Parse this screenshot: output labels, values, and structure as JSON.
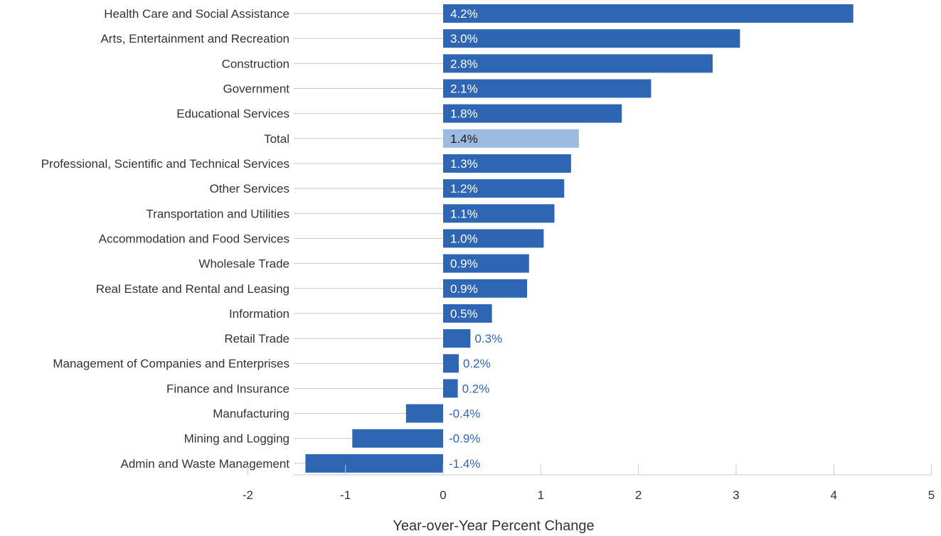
{
  "chart_data": {
    "type": "bar",
    "orientation": "horizontal",
    "xlabel": "Year-over-Year Percent Change",
    "xlim": [
      -2,
      5
    ],
    "xticks": [
      -2,
      -1,
      0,
      1,
      2,
      3,
      4,
      5
    ],
    "xtick_labels": [
      "-2",
      "-1",
      "0",
      "1",
      "2",
      "3",
      "4",
      "5"
    ],
    "colors": {
      "bar": "#2f66b3",
      "highlight": "#9dbbe0",
      "label_outside": "#2f66b3"
    },
    "categories": [
      "Health Care and Social Assistance",
      "Arts, Entertainment and Recreation",
      "Construction",
      "Government",
      "Educational Services",
      "Total",
      "Professional, Scientific and Technical Services",
      "Other Services",
      "Transportation and Utilities",
      "Accommodation and Food Services",
      "Wholesale Trade",
      "Real Estate and Rental and Leasing",
      "Information",
      "Retail Trade",
      "Management of Companies and Enterprises",
      "Finance and Insurance",
      "Manufacturing",
      "Mining and Logging",
      "Admin and Waste Management"
    ],
    "values": [
      4.2,
      3.04,
      2.76,
      2.13,
      1.83,
      1.39,
      1.31,
      1.24,
      1.14,
      1.03,
      0.88,
      0.86,
      0.5,
      0.28,
      0.16,
      0.15,
      -0.38,
      -0.93,
      -1.41
    ],
    "value_labels": [
      "4.2%",
      "3.0%",
      "2.8%",
      "2.1%",
      "1.8%",
      "1.4%",
      "1.3%",
      "1.2%",
      "1.1%",
      "1.0%",
      "0.9%",
      "0.9%",
      "0.5%",
      "0.3%",
      "0.2%",
      "0.2%",
      "-0.4%",
      "-0.9%",
      "-1.4%"
    ],
    "highlight": "Total"
  }
}
